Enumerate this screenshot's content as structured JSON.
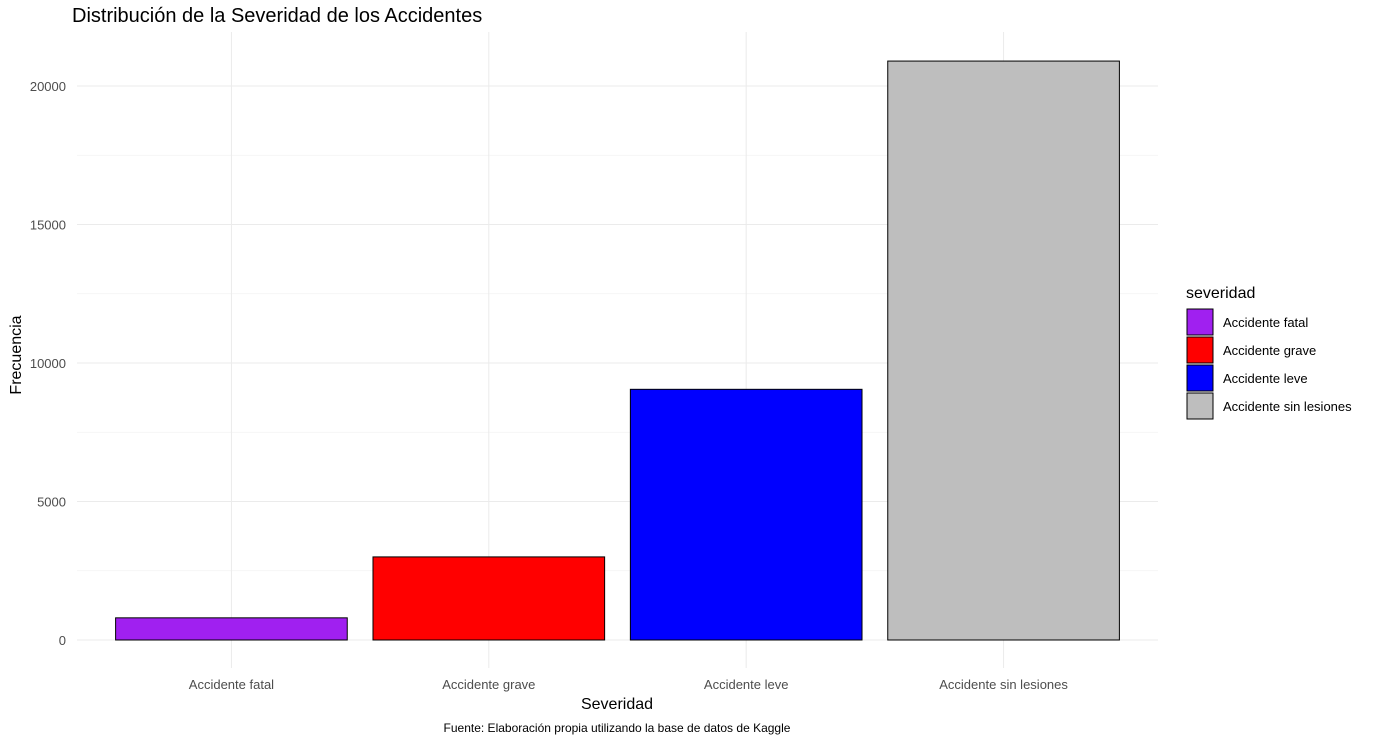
{
  "chart_data": {
    "type": "bar",
    "title": "Distribución de la Severidad de los Accidentes",
    "xlabel": "Severidad",
    "ylabel": "Frecuencia",
    "caption": "Fuente: Elaboración propia utilizando la base de datos de Kaggle",
    "categories": [
      "Accidente fatal",
      "Accidente grave",
      "Accidente leve",
      "Accidente sin lesiones"
    ],
    "values": [
      800,
      3000,
      9050,
      20900
    ],
    "colors": [
      "#a020f0",
      "#ff0000",
      "#0000ff",
      "#bebebe"
    ],
    "ylim": [
      0,
      21950
    ],
    "yticks": [
      0,
      5000,
      10000,
      15000,
      20000
    ],
    "grid": true,
    "legend": {
      "title": "severidad",
      "position": "right",
      "items": [
        "Accidente fatal",
        "Accidente grave",
        "Accidente leve",
        "Accidente sin lesiones"
      ]
    }
  }
}
